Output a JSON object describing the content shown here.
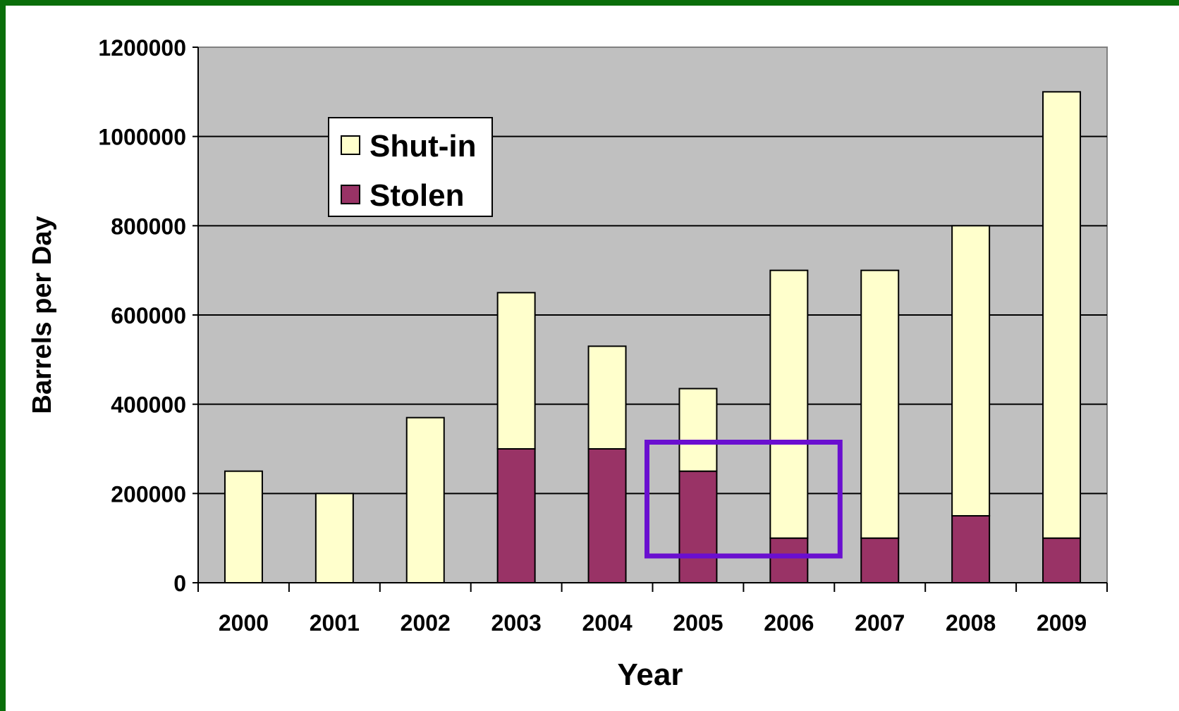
{
  "chart_data": {
    "type": "bar",
    "stacked": true,
    "categories": [
      "2000",
      "2001",
      "2002",
      "2003",
      "2004",
      "2005",
      "2006",
      "2007",
      "2008",
      "2009"
    ],
    "series": [
      {
        "name": "Stolen",
        "values": [
          0,
          0,
          0,
          300000,
          300000,
          250000,
          100000,
          100000,
          150000,
          100000
        ]
      },
      {
        "name": "Shut-in",
        "values": [
          250000,
          200000,
          370000,
          350000,
          230000,
          185000,
          600000,
          600000,
          650000,
          1000000
        ]
      }
    ],
    "xlabel": "Year",
    "ylabel": "Barrels per Day",
    "ylim": [
      0,
      1200000
    ],
    "yticks": [
      "0",
      "200000",
      "400000",
      "600000",
      "800000",
      "1000000",
      "1200000"
    ],
    "grid": true,
    "legend_position": "top-left",
    "legend": [
      {
        "name": "Shut-in",
        "color": "#ffffcc"
      },
      {
        "name": "Stolen",
        "color": "#993366"
      }
    ],
    "colors": {
      "plot_background": "#c0c0c0",
      "frame_border": "#0a6e0a",
      "highlight_box": "#6a0fd0"
    },
    "highlight_annotation": {
      "x_from": "2005",
      "x_to": "2006",
      "y_from": 60000,
      "y_to": 315000
    }
  }
}
